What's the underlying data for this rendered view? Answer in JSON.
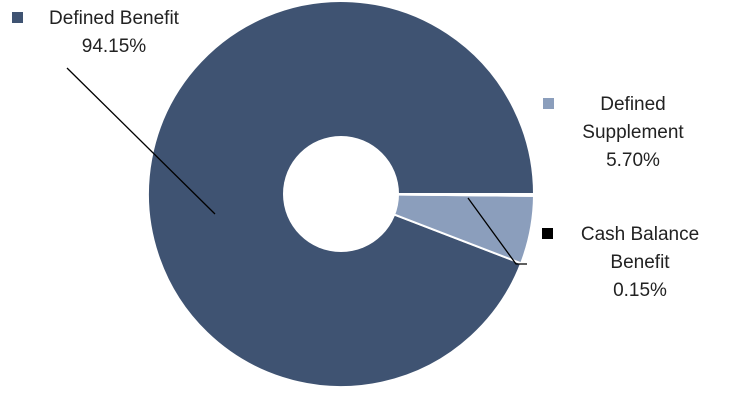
{
  "chart_data": {
    "type": "pie",
    "donut": true,
    "slices": [
      {
        "name": "Defined Benefit",
        "value": 94.15,
        "label_lines": [
          "Defined Benefit",
          "94.15%"
        ],
        "color": "#3f5372"
      },
      {
        "name": "Defined Supplement",
        "value": 5.7,
        "label_lines": [
          "Defined",
          "Supplement",
          "5.70%"
        ],
        "color": "#8b9ebc"
      },
      {
        "name": "Cash Balance Benefit",
        "value": 0.15,
        "label_lines": [
          "Cash Balance",
          "Benefit",
          "0.15%"
        ],
        "color": "#000000"
      }
    ],
    "legend": "labels-with-leader-lines"
  }
}
